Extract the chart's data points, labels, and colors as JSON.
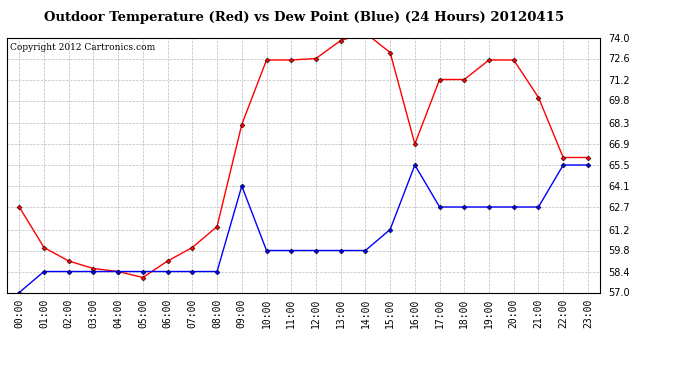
{
  "title": "Outdoor Temperature (Red) vs Dew Point (Blue) (24 Hours) 20120415",
  "copyright": "Copyright 2012 Cartronics.com",
  "x_labels": [
    "00:00",
    "01:00",
    "02:00",
    "03:00",
    "04:00",
    "05:00",
    "06:00",
    "07:00",
    "08:00",
    "09:00",
    "10:00",
    "11:00",
    "12:00",
    "13:00",
    "14:00",
    "15:00",
    "16:00",
    "17:00",
    "18:00",
    "19:00",
    "20:00",
    "21:00",
    "22:00",
    "23:00"
  ],
  "red_temp": [
    62.7,
    60.0,
    59.1,
    58.6,
    58.4,
    58.0,
    59.1,
    60.0,
    61.4,
    68.2,
    72.5,
    72.5,
    72.6,
    73.8,
    74.3,
    73.0,
    66.9,
    71.2,
    71.2,
    72.5,
    72.5,
    70.0,
    66.0,
    66.0
  ],
  "blue_dew": [
    57.0,
    58.4,
    58.4,
    58.4,
    58.4,
    58.4,
    58.4,
    58.4,
    58.4,
    64.1,
    59.8,
    59.8,
    59.8,
    59.8,
    59.8,
    61.2,
    65.5,
    62.7,
    62.7,
    62.7,
    62.7,
    62.7,
    65.5,
    65.5
  ],
  "ylim_min": 57.0,
  "ylim_max": 74.0,
  "yticks": [
    57.0,
    58.4,
    59.8,
    61.2,
    62.7,
    64.1,
    65.5,
    66.9,
    68.3,
    69.8,
    71.2,
    72.6,
    74.0
  ],
  "bg_color": "#FFFFFF",
  "plot_bg_color": "#FFFFFF",
  "grid_color": "#AAAAAA",
  "red_color": "#FF0000",
  "blue_color": "#0000FF",
  "title_fontsize": 9.5,
  "copyright_fontsize": 6.5,
  "tick_fontsize": 7
}
